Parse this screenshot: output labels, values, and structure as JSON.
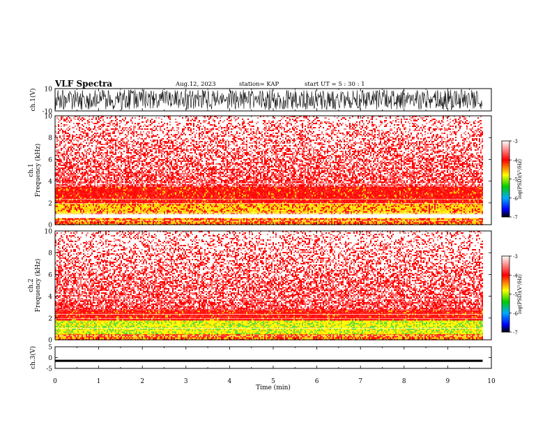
{
  "header": {
    "title": "VLF Spectra",
    "date": "Aug.12, 2023",
    "station": "station= KAP",
    "start": "start UT =  5 : 30 : 1"
  },
  "colorbar": {
    "label": "log(PSD)(V²/Hz)",
    "ticks": [
      "-3",
      "-4",
      "-5",
      "-6",
      "-7"
    ],
    "colors": [
      "#ffffff",
      "#ff0000",
      "#ffff00",
      "#00cc00",
      "#00aaff",
      "#0000ff",
      "#000000"
    ]
  },
  "chart_data": [
    {
      "type": "line",
      "ylabel": "ch.1(V)",
      "ylim": [
        -10,
        10
      ],
      "yticks": [
        "10",
        "-10"
      ],
      "xlim": [
        0,
        10
      ],
      "series": [
        {
          "description": "dense waveform filling most of panel",
          "values_range": [
            -9,
            9
          ]
        }
      ]
    },
    {
      "type": "heatmap",
      "ylabel": "ch.1\nFrequency (kHz)",
      "ylim": [
        0,
        10
      ],
      "yticks": [
        "0",
        "2",
        "4",
        "6",
        "8",
        "10"
      ],
      "xlim": [
        0,
        10
      ],
      "bands_khz": [
        {
          "from": 0.0,
          "to": 0.6,
          "level": -4.2
        },
        {
          "from": 1.0,
          "to": 2.0,
          "level": -4.3
        },
        {
          "from": 2.0,
          "to": 3.5,
          "level": -4.0
        },
        {
          "from": 3.5,
          "to": 10.0,
          "level": -3.4
        }
      ],
      "data_end_min": 9.8
    },
    {
      "type": "heatmap",
      "ylabel": "ch.2\nFrequency (kHz)",
      "ylim": [
        0,
        10
      ],
      "yticks": [
        "0",
        "2",
        "4",
        "6",
        "8",
        "10"
      ],
      "xlim": [
        0,
        10
      ],
      "bands_khz": [
        {
          "from": 0.0,
          "to": 0.6,
          "level": -4.2
        },
        {
          "from": 0.6,
          "to": 1.8,
          "level": -4.6
        },
        {
          "from": 1.8,
          "to": 2.8,
          "level": -4.0
        },
        {
          "from": 2.8,
          "to": 10.0,
          "level": -3.4
        }
      ],
      "data_end_min": 9.8
    },
    {
      "type": "line",
      "ylabel": "ch.3(V)",
      "ylim": [
        -5,
        5
      ],
      "yticks": [
        "5",
        "0",
        "-5"
      ],
      "xlim": [
        0,
        10
      ],
      "xlabel": "Time (min)",
      "xticks": [
        "0",
        "1",
        "2",
        "3",
        "4",
        "5",
        "6",
        "7",
        "8",
        "9",
        "10"
      ],
      "series": [
        {
          "description": "near-constant band around -1.5 V",
          "values_range": [
            -2,
            -1
          ]
        }
      ]
    }
  ]
}
